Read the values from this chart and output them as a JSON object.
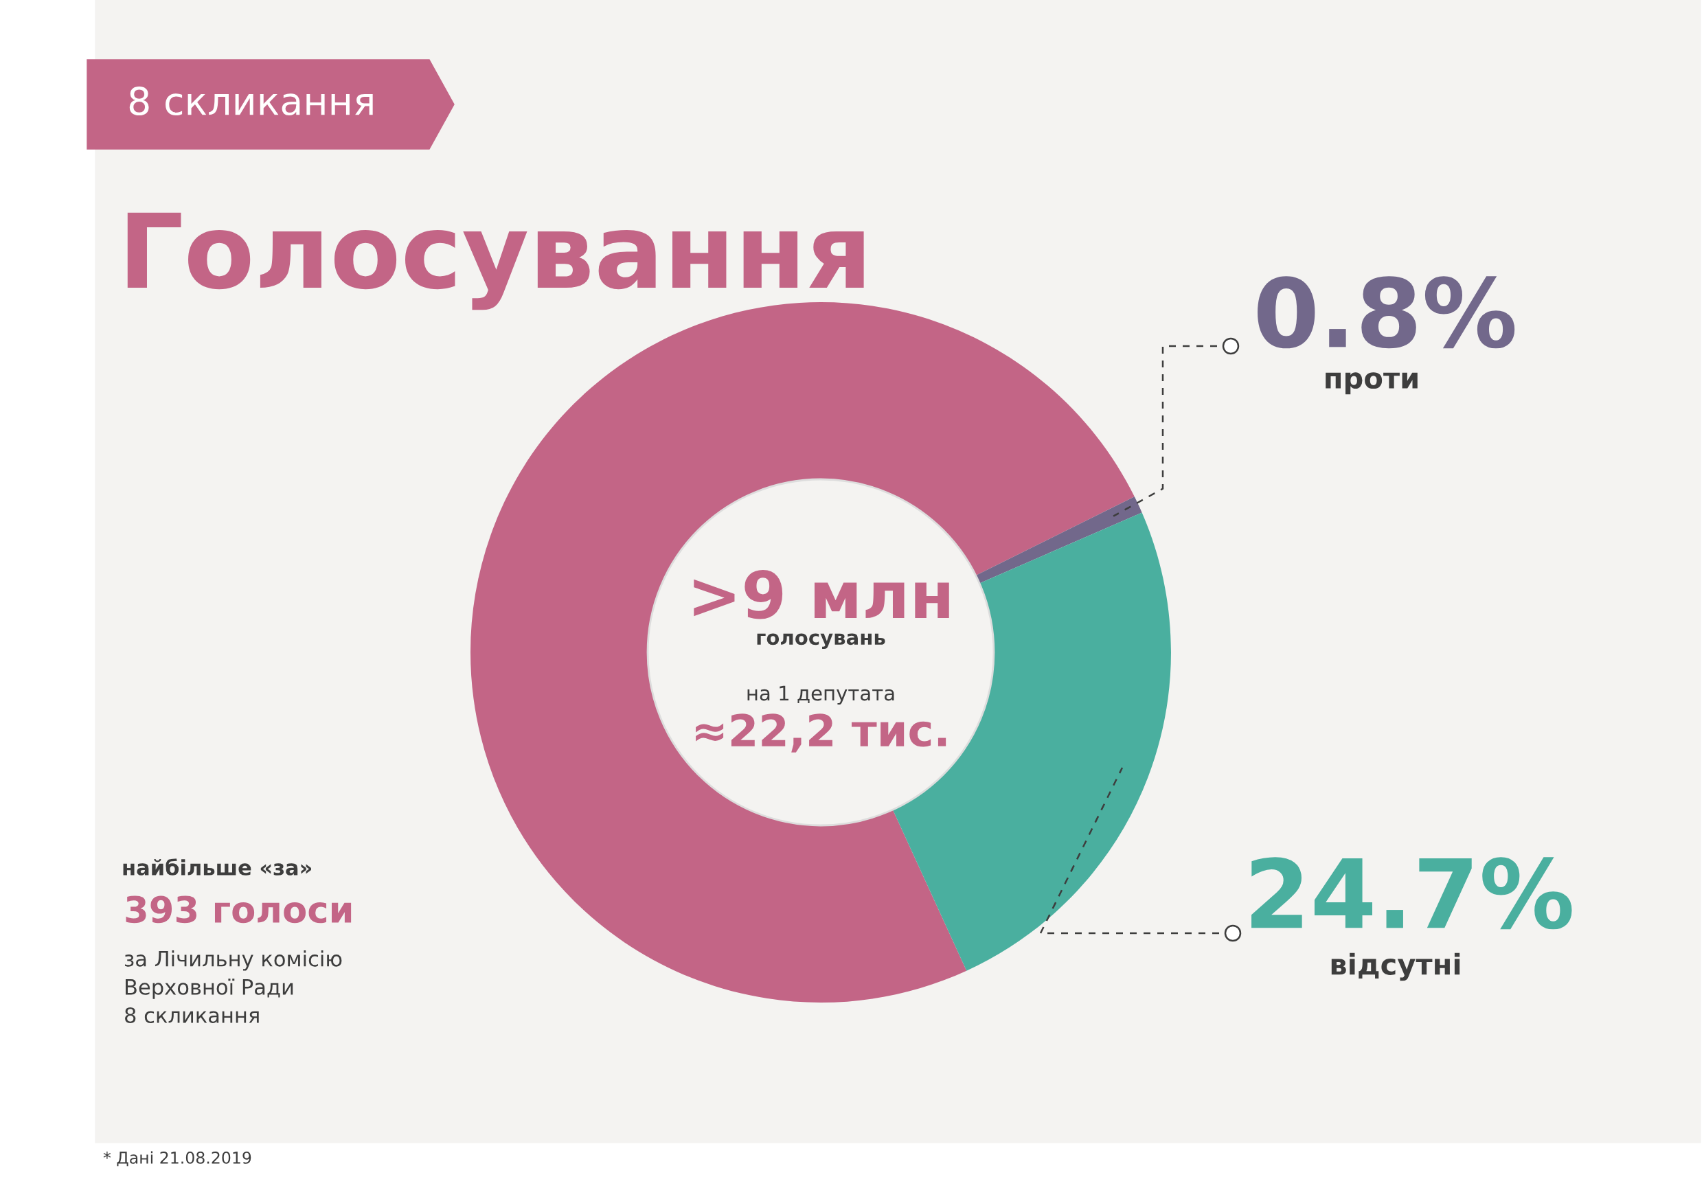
{
  "chart_data": {
    "type": "donut",
    "title": "Голосування",
    "subtitle": "8 скликання",
    "categories": [
      null,
      "проти",
      "відсутні"
    ],
    "values": [
      74.5,
      0.8,
      24.7
    ],
    "colors": [
      "#c36586",
      "#72688b",
      "#4aaf9f"
    ],
    "value_labels": [
      null,
      "0.8%",
      "24.7%"
    ],
    "annotations": [
      ">9 млн",
      "голосувань",
      "на 1 депутата",
      "≈22,2 тис.",
      "найбільше «за»",
      "393 голоси",
      "за Лічильну комісію\nВерховної Ради\n8 скликання",
      "* Дані 21.08.2019"
    ]
  }
}
